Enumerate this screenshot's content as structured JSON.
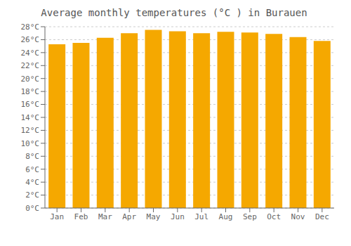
{
  "chart_data": {
    "type": "bar",
    "title": "Average monthly temperatures (°C ) in Burauen",
    "categories": [
      "Jan",
      "Feb",
      "Mar",
      "Apr",
      "May",
      "Jun",
      "Jul",
      "Aug",
      "Sep",
      "Oct",
      "Nov",
      "Dec"
    ],
    "values": [
      25.3,
      25.5,
      26.3,
      27.0,
      27.5,
      27.3,
      27.0,
      27.2,
      27.1,
      26.9,
      26.4,
      25.8
    ],
    "color": "#F5A800",
    "ylim": [
      0,
      28
    ],
    "yticks": [
      {
        "value": 0,
        "label": "0°C"
      },
      {
        "value": 2,
        "label": "2°C"
      },
      {
        "value": 4,
        "label": "4°C"
      },
      {
        "value": 6,
        "label": "6°C"
      },
      {
        "value": 8,
        "label": "8°C"
      },
      {
        "value": 10,
        "label": "10°C"
      },
      {
        "value": 12,
        "label": "12°C"
      },
      {
        "value": 14,
        "label": "14°C"
      },
      {
        "value": 16,
        "label": "16°C"
      },
      {
        "value": 18,
        "label": "18°C"
      },
      {
        "value": 20,
        "label": "20°C"
      },
      {
        "value": 22,
        "label": "22°C"
      },
      {
        "value": 24,
        "label": "24°C"
      },
      {
        "value": 26,
        "label": "26°C"
      },
      {
        "value": 28,
        "label": "28°C"
      }
    ],
    "grid": true
  }
}
